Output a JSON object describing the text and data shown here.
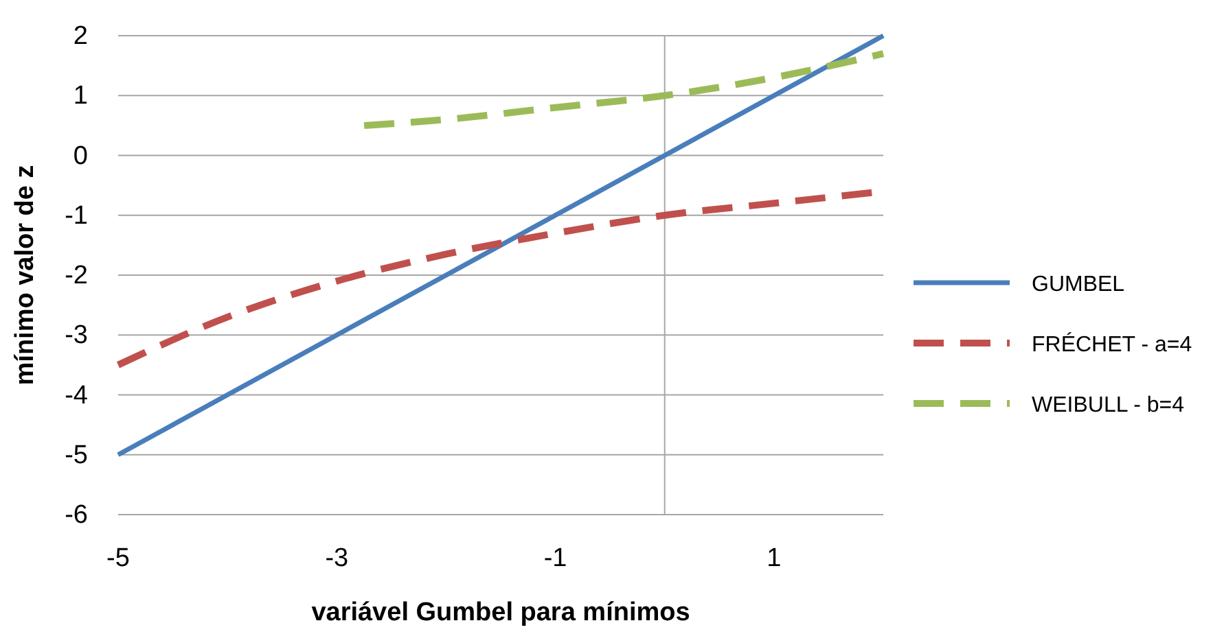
{
  "chart_data": {
    "type": "line",
    "xlabel": "variável Gumbel para mínimos",
    "ylabel": "mínimo valor de z",
    "xlim": [
      -5,
      2
    ],
    "xticks": [
      -5,
      -3,
      -1,
      1
    ],
    "ylim": [
      -6,
      2
    ],
    "yticks": [
      -6,
      -5,
      -4,
      -3,
      -2,
      -1,
      0,
      1,
      2
    ],
    "grid": "y",
    "legend": "right",
    "ref_lines": [
      {
        "axis": "x",
        "value": 0,
        "color": "#a6a6a6"
      }
    ],
    "series": [
      {
        "name": "GUMBEL",
        "color": "#4a7ebb",
        "line_style": "solid",
        "x": [
          -5,
          2
        ],
        "values": [
          -5,
          2
        ]
      },
      {
        "name": "FRÉCHET - a=4",
        "color": "#c0504d",
        "line_style": "dashed",
        "x": [
          -5,
          -4,
          -3,
          -2,
          -1,
          0,
          1,
          2
        ],
        "values": [
          -3.5,
          -2.7,
          -2.1,
          -1.65,
          -1.3,
          -1,
          -0.8,
          -0.6
        ]
      },
      {
        "name": "WEIBULL - b=4",
        "color": "#9bbb59",
        "line_style": "dashed",
        "x": [
          -2.75,
          -2,
          -1,
          0,
          1,
          2
        ],
        "values": [
          0.5,
          0.6,
          0.8,
          1,
          1.3,
          1.7
        ]
      }
    ]
  }
}
